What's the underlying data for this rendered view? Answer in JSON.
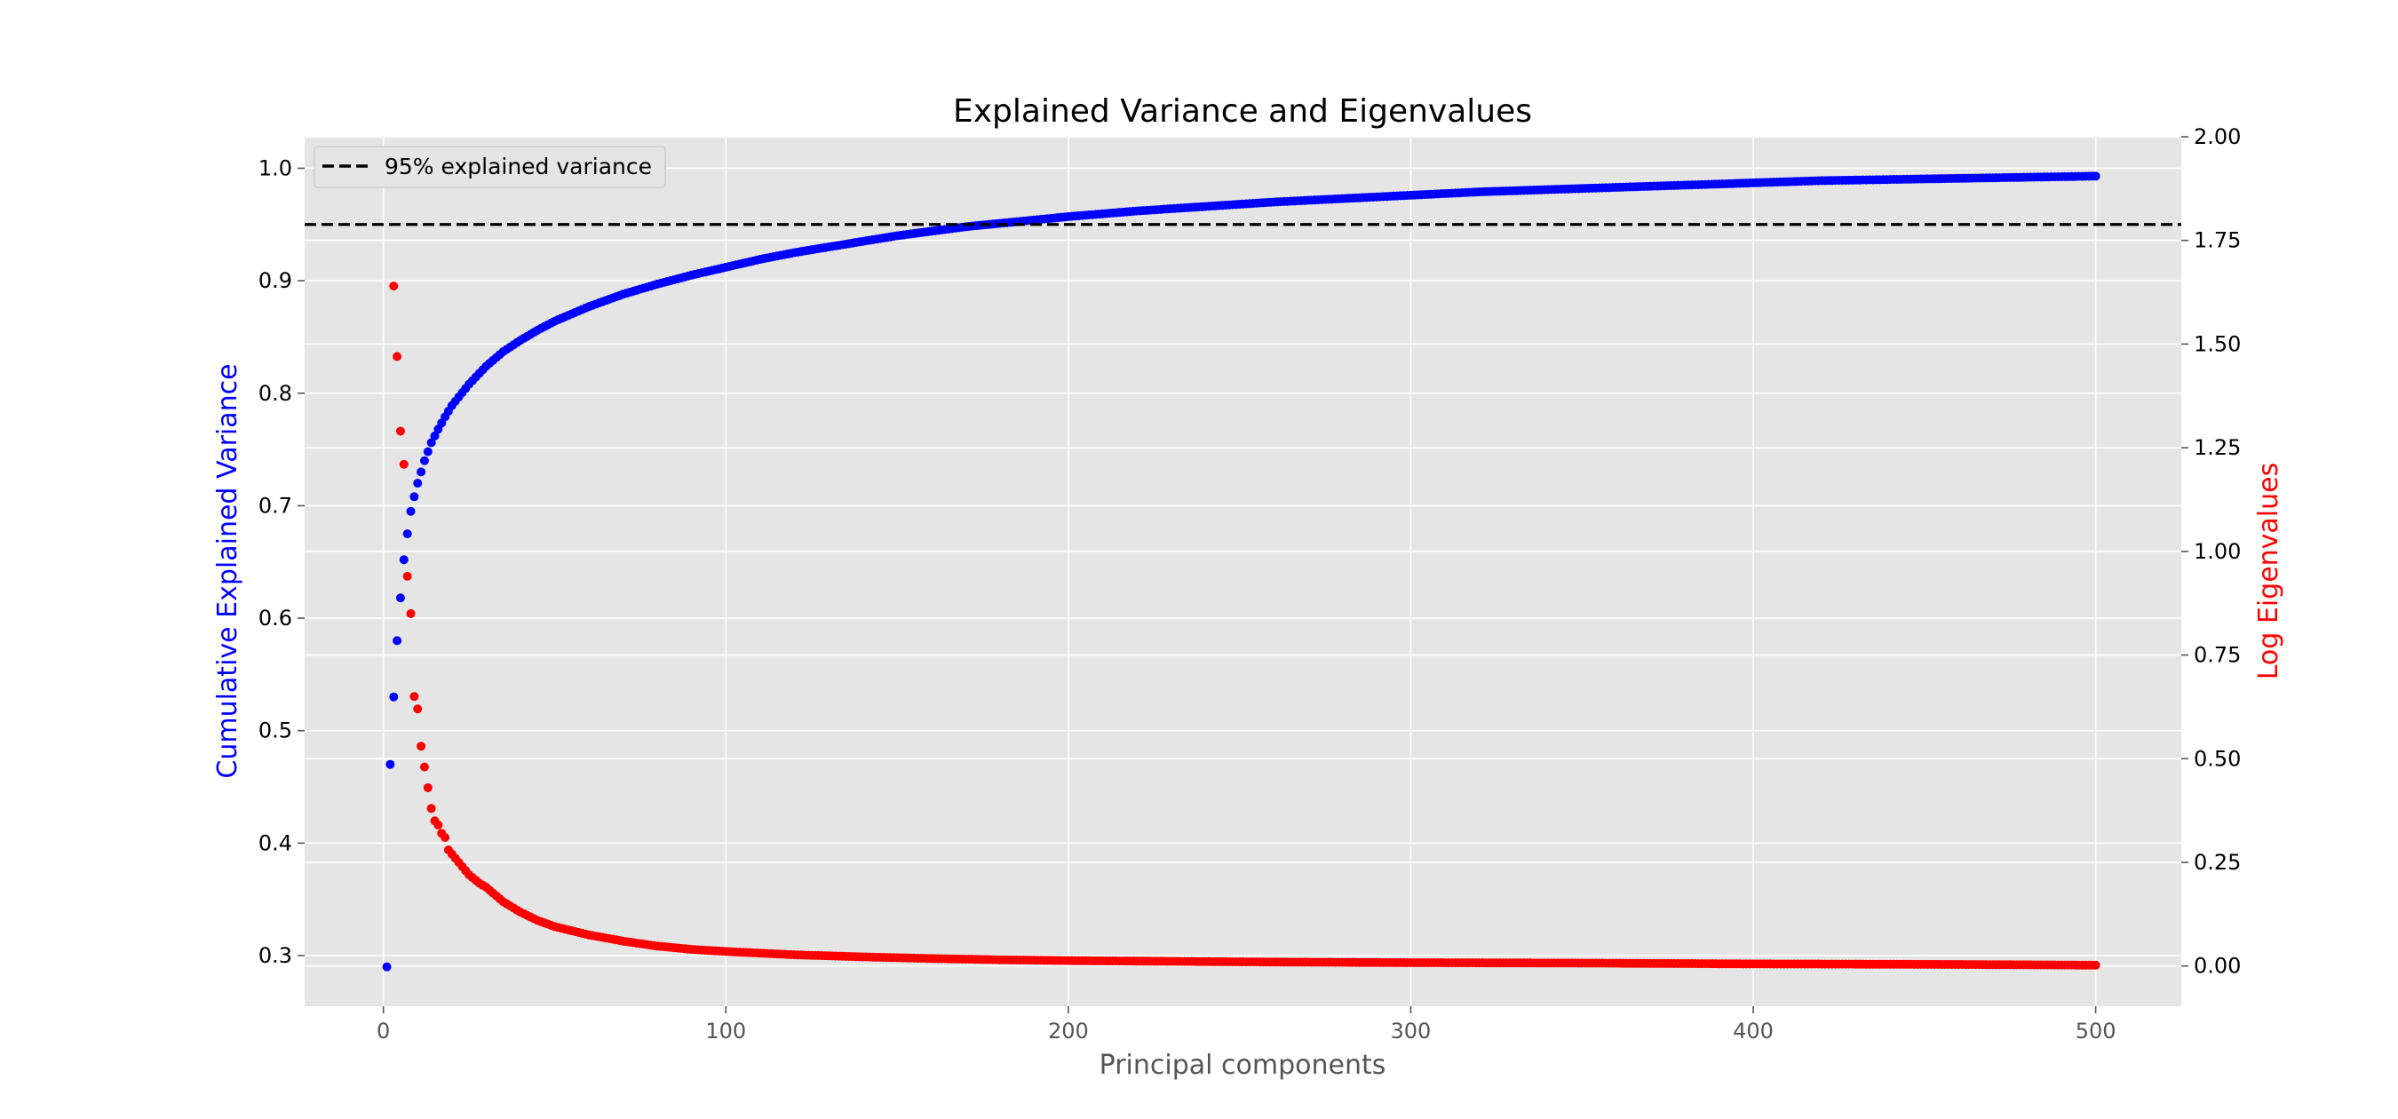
{
  "chart_data": {
    "type": "scatter",
    "title": "Explained Variance and Eigenvalues",
    "xlabel": "Principal components",
    "ylabel_left": "Cumulative Explained Variance",
    "ylabel_right": "Log Eigenvalues",
    "xlim": [
      -23,
      525
    ],
    "ylim_left": [
      0.255,
      1.028
    ],
    "ylim_right": [
      -0.097,
      2.0
    ],
    "x_ticks": [
      0,
      100,
      200,
      300,
      400,
      500
    ],
    "y_left_ticks": [
      0.3,
      0.4,
      0.5,
      0.6,
      0.7,
      0.8,
      0.9,
      1.0
    ],
    "y_right_ticks": [
      0.0,
      0.25,
      0.5,
      0.75,
      1.0,
      1.25,
      1.5,
      1.75,
      2.0
    ],
    "y_right_tick_labels": [
      "0.00",
      "0.25",
      "0.50",
      "0.75",
      "1.00",
      "1.25",
      "1.50",
      "1.75",
      "2.00"
    ],
    "grid": true,
    "legend_position": "top-left",
    "reference_line": {
      "y": 0.95,
      "label": "95% explained variance",
      "color": "#000000",
      "style": "dashed"
    },
    "colors": {
      "cumulative": "#0000ff",
      "eigen": "#ff0000",
      "background": "#e5e5e5",
      "grid": "#ffffff"
    },
    "n_components": 500,
    "series": [
      {
        "axis": "left",
        "color": "#0000ff",
        "points": [
          [
            1,
            0.29
          ],
          [
            2,
            0.47
          ],
          [
            3,
            0.53
          ],
          [
            4,
            0.58
          ],
          [
            5,
            0.618
          ],
          [
            6,
            0.652
          ],
          [
            7,
            0.675
          ],
          [
            8,
            0.695
          ],
          [
            9,
            0.708
          ],
          [
            10,
            0.72
          ],
          [
            11,
            0.73
          ],
          [
            12,
            0.74
          ],
          [
            13,
            0.748
          ],
          [
            14,
            0.756
          ],
          [
            15,
            0.762
          ],
          [
            16,
            0.768
          ],
          [
            18,
            0.779
          ],
          [
            20,
            0.789
          ],
          [
            25,
            0.808
          ],
          [
            30,
            0.824
          ],
          [
            35,
            0.837
          ],
          [
            40,
            0.847
          ],
          [
            45,
            0.856
          ],
          [
            50,
            0.864
          ],
          [
            60,
            0.877
          ],
          [
            70,
            0.888
          ],
          [
            80,
            0.897
          ],
          [
            90,
            0.905
          ],
          [
            100,
            0.912
          ],
          [
            110,
            0.919
          ],
          [
            120,
            0.925
          ],
          [
            130,
            0.93
          ],
          [
            140,
            0.935
          ],
          [
            150,
            0.94
          ],
          [
            160,
            0.944
          ],
          [
            170,
            0.948
          ],
          [
            180,
            0.951
          ],
          [
            190,
            0.954
          ],
          [
            200,
            0.957
          ],
          [
            220,
            0.962
          ],
          [
            240,
            0.966
          ],
          [
            260,
            0.97
          ],
          [
            280,
            0.973
          ],
          [
            300,
            0.976
          ],
          [
            320,
            0.979
          ],
          [
            340,
            0.981
          ],
          [
            360,
            0.983
          ],
          [
            380,
            0.985
          ],
          [
            400,
            0.987
          ],
          [
            420,
            0.989
          ],
          [
            440,
            0.99
          ],
          [
            460,
            0.991
          ],
          [
            480,
            0.992
          ],
          [
            500,
            0.993
          ]
        ]
      },
      {
        "axis": "right",
        "color": "#ff0000",
        "points": [
          [
            3,
            1.64
          ],
          [
            4,
            1.47
          ],
          [
            5,
            1.29
          ],
          [
            6,
            1.21
          ],
          [
            7,
            0.94
          ],
          [
            8,
            0.85
          ],
          [
            9,
            0.65
          ],
          [
            10,
            0.62
          ],
          [
            11,
            0.53
          ],
          [
            12,
            0.48
          ],
          [
            13,
            0.43
          ],
          [
            14,
            0.38
          ],
          [
            15,
            0.35
          ],
          [
            16,
            0.34
          ],
          [
            17,
            0.32
          ],
          [
            18,
            0.31
          ],
          [
            19,
            0.28
          ],
          [
            20,
            0.27
          ],
          [
            22,
            0.25
          ],
          [
            25,
            0.22
          ],
          [
            28,
            0.2
          ],
          [
            30,
            0.19
          ],
          [
            35,
            0.155
          ],
          [
            40,
            0.13
          ],
          [
            45,
            0.11
          ],
          [
            50,
            0.095
          ],
          [
            60,
            0.075
          ],
          [
            70,
            0.06
          ],
          [
            80,
            0.048
          ],
          [
            90,
            0.04
          ],
          [
            100,
            0.035
          ],
          [
            120,
            0.027
          ],
          [
            140,
            0.022
          ],
          [
            160,
            0.018
          ],
          [
            180,
            0.015
          ],
          [
            200,
            0.013
          ],
          [
            250,
            0.01
          ],
          [
            300,
            0.008
          ],
          [
            350,
            0.007
          ],
          [
            400,
            0.005
          ],
          [
            450,
            0.004
          ],
          [
            500,
            0.002
          ]
        ]
      }
    ]
  }
}
